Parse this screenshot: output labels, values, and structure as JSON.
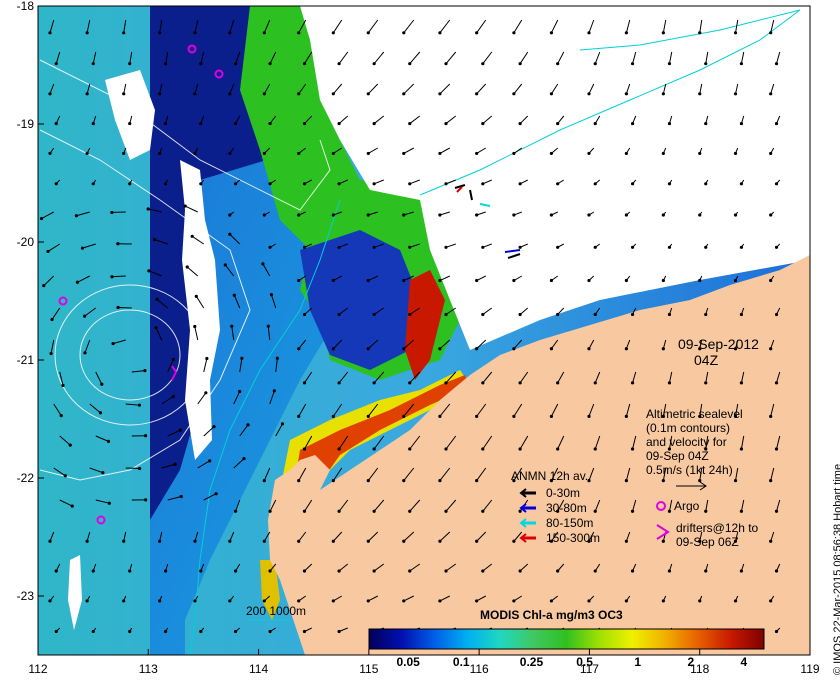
{
  "axes": {
    "x_ticks": [
      "112",
      "113",
      "114",
      "115",
      "116",
      "117",
      "118",
      "119"
    ],
    "y_ticks": [
      "-18",
      "-19",
      "-20",
      "-21",
      "-22",
      "-23"
    ],
    "xlim": [
      112,
      119
    ],
    "ylim": [
      -23.5,
      -18
    ]
  },
  "date_label": {
    "date": "09-Sep-2012",
    "hour": "04Z"
  },
  "altimetry": {
    "lines": [
      "Altimetric sealevel",
      "(0.1m contours)",
      "and velocity for",
      "09-Sep 04Z",
      "0.5m/s (1kt 24h)"
    ]
  },
  "argo": {
    "label": "Argo",
    "color": "#e000e0"
  },
  "drifters": {
    "line1": "drifters@12h to",
    "line2": "09-Sep 06Z",
    "color": "#e000e0"
  },
  "anmn_legend": {
    "title": "ANMN 12h av.",
    "items": [
      {
        "label": "0-30m",
        "color": "#000000"
      },
      {
        "label": "30-80m",
        "color": "#0000dd"
      },
      {
        "label": "80-150m",
        "color": "#00d8e0"
      },
      {
        "label": "150-300m",
        "color": "#dd0000"
      }
    ]
  },
  "colorbar": {
    "title": "MODIS Chl-a mg/m3 OC3",
    "ticks": [
      "0.05",
      "0.1",
      "0.25",
      "0.5",
      "1",
      "2",
      "4"
    ],
    "colors": [
      "#00005a",
      "#0010b0",
      "#0060e8",
      "#00b0f0",
      "#20d8c0",
      "#40c860",
      "#30c020",
      "#a0e000",
      "#f0f000",
      "#f0b000",
      "#e86000",
      "#c81800",
      "#800000"
    ]
  },
  "depth_contours": {
    "label": "200  1000m",
    "color": "#00d0d8"
  },
  "credit": "© IMOS 22-Mar-2015 08:56:38 Hobart time",
  "palette": {
    "land": "#f8c8a0",
    "ocean_offshore": "#3fb0d8",
    "ocean_deep": "#0a1a7a",
    "coastal_green": "#30c020",
    "cloud": "#ffffff",
    "bathymetry": "#00d0d8",
    "contour": "#ffffff"
  }
}
